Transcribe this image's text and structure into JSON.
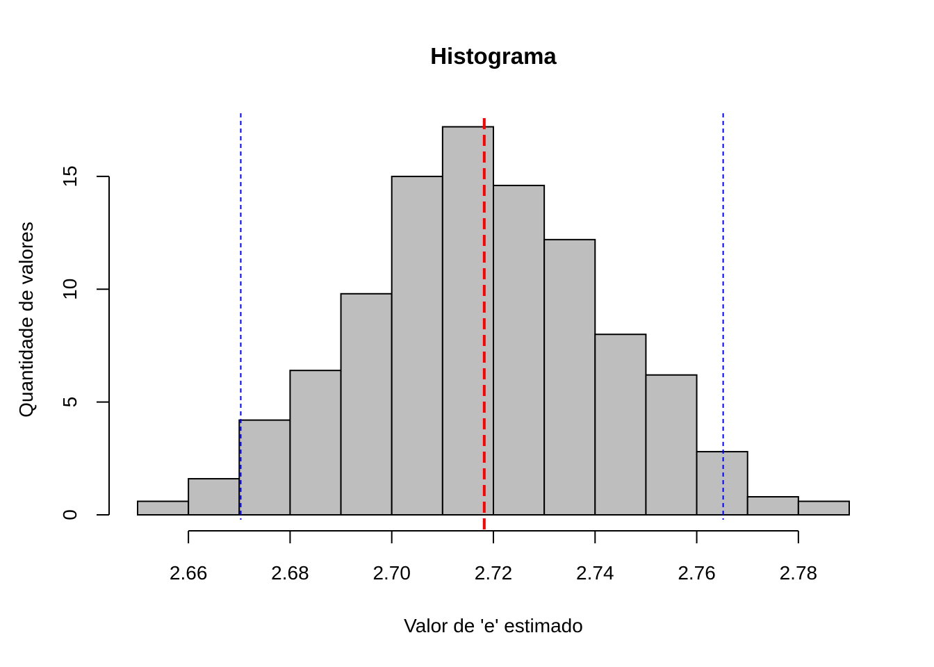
{
  "chart_data": {
    "type": "bar",
    "title": "Histograma",
    "xlabel": "Valor de 'e' estimado",
    "ylabel": "Quantidade de valores",
    "bin_edges": [
      2.65,
      2.66,
      2.67,
      2.68,
      2.69,
      2.7,
      2.71,
      2.72,
      2.73,
      2.74,
      2.75,
      2.76,
      2.77,
      2.78,
      2.79
    ],
    "values": [
      0.6,
      1.6,
      4.2,
      6.4,
      9.8,
      15.0,
      17.2,
      14.6,
      12.2,
      8.0,
      6.2,
      2.8,
      0.8,
      0.6
    ],
    "xlim": [
      2.65,
      2.79
    ],
    "ylim": [
      0,
      17.4
    ],
    "x_ticks": [
      2.66,
      2.68,
      2.7,
      2.72,
      2.74,
      2.76,
      2.78
    ],
    "x_tick_labels": [
      "2.66",
      "2.68",
      "2.70",
      "2.72",
      "2.74",
      "2.76",
      "2.78"
    ],
    "y_ticks": [
      0,
      5,
      10,
      15
    ],
    "y_tick_labels": [
      "0",
      "5",
      "10",
      "15"
    ],
    "reference_lines": [
      {
        "name": "mean",
        "x": 2.7182,
        "color": "#ff0000",
        "style": "dashed-thick"
      },
      {
        "name": "lower",
        "x": 2.6703,
        "color": "#0000ff",
        "style": "dashed-thin"
      },
      {
        "name": "upper",
        "x": 2.7652,
        "color": "#0000ff",
        "style": "dashed-thin"
      }
    ],
    "bar_color": "#bebebe",
    "grid": false
  }
}
